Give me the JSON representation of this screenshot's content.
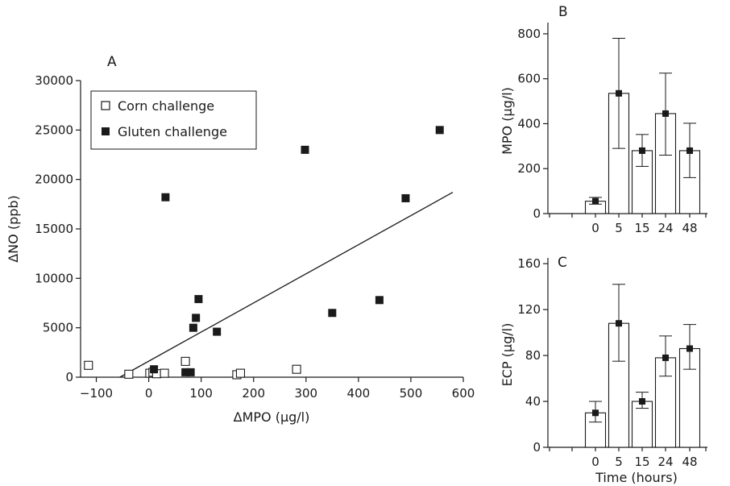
{
  "colors": {
    "ink": "#1a1a1a",
    "paper": "#ffffff"
  },
  "chart_data": [
    {
      "panel": "A",
      "type": "scatter",
      "xlabel": "ΔMPO (μg/l)",
      "ylabel": "ΔNO (ppb)",
      "xlim": [
        -130,
        600
      ],
      "ylim": [
        0,
        30000
      ],
      "xticks": [
        -100,
        0,
        100,
        200,
        300,
        400,
        500,
        600
      ],
      "yticks": [
        0,
        5000,
        10000,
        15000,
        20000,
        25000,
        30000
      ],
      "legend": {
        "position": "top-left"
      },
      "series": [
        {
          "name": "Corn challenge",
          "marker": "open-square",
          "points": [
            [
              -115,
              1200
            ],
            [
              -38,
              300
            ],
            [
              2,
              400
            ],
            [
              8,
              500
            ],
            [
              15,
              350
            ],
            [
              30,
              400
            ],
            [
              70,
              1600
            ],
            [
              168,
              250
            ],
            [
              175,
              400
            ],
            [
              282,
              800
            ]
          ]
        },
        {
          "name": "Gluten challenge",
          "marker": "filled-square",
          "points": [
            [
              10,
              800
            ],
            [
              32,
              18200
            ],
            [
              70,
              500
            ],
            [
              80,
              500
            ],
            [
              85,
              5000
            ],
            [
              90,
              6000
            ],
            [
              95,
              7900
            ],
            [
              130,
              4600
            ],
            [
              298,
              23000
            ],
            [
              350,
              6500
            ],
            [
              440,
              7800
            ],
            [
              490,
              18100
            ],
            [
              555,
              25000
            ]
          ]
        }
      ],
      "regression_line": {
        "x": [
          -55,
          580
        ],
        "y": [
          0,
          18700
        ]
      }
    },
    {
      "panel": "B",
      "type": "bar",
      "ylabel": "MPO (μg/l)",
      "xlabel": "",
      "categories": [
        "0",
        "5",
        "15",
        "24",
        "48"
      ],
      "values": [
        55,
        535,
        280,
        445,
        280
      ],
      "error_low": [
        42,
        290,
        210,
        260,
        160
      ],
      "error_high": [
        72,
        780,
        352,
        625,
        402
      ],
      "ylim": [
        0,
        850
      ],
      "yticks": [
        0,
        200,
        400,
        600,
        800
      ]
    },
    {
      "panel": "C",
      "type": "bar",
      "ylabel": "ECP (μg/l)",
      "xlabel": "Time (hours)",
      "categories": [
        "0",
        "5",
        "15",
        "24",
        "48"
      ],
      "values": [
        30,
        108,
        40,
        78,
        86
      ],
      "error_low": [
        22,
        75,
        34,
        62,
        68
      ],
      "error_high": [
        40,
        142,
        48,
        97,
        107
      ],
      "ylim": [
        0,
        165
      ],
      "yticks": [
        0,
        40,
        80,
        120,
        160
      ]
    }
  ]
}
